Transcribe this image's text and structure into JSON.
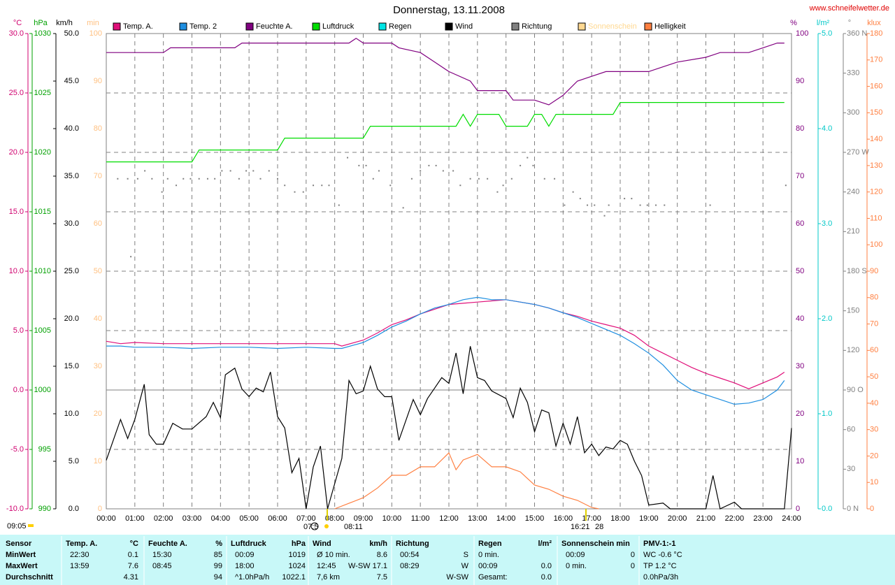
{
  "chart_data": {
    "type": "line",
    "title": "Donnerstag, 13.11.2008",
    "source": "www.schneifelwetter.de",
    "xlim": [
      0,
      24
    ],
    "xticks": [
      {
        "value": 0,
        "label": "00:00"
      },
      {
        "value": 1,
        "label": "01:00"
      },
      {
        "value": 2,
        "label": "02:00"
      },
      {
        "value": 3,
        "label": "03:00"
      },
      {
        "value": 4,
        "label": "04:00"
      },
      {
        "value": 5,
        "label": "05:00"
      },
      {
        "value": 6,
        "label": "06:00"
      },
      {
        "value": 7,
        "label": "07:00"
      },
      {
        "value": 8,
        "label": "08:00"
      },
      {
        "value": 9,
        "label": "09:00"
      },
      {
        "value": 10,
        "label": "10:00"
      },
      {
        "value": 11,
        "label": "11:00"
      },
      {
        "value": 12,
        "label": "12:00"
      },
      {
        "value": 13,
        "label": "13:00"
      },
      {
        "value": 14,
        "label": "14:00"
      },
      {
        "value": 15,
        "label": "15:00"
      },
      {
        "value": 16,
        "label": "16:00"
      },
      {
        "value": 17,
        "label": "17:00"
      },
      {
        "value": 18,
        "label": "18:00"
      },
      {
        "value": 19,
        "label": "19:00"
      },
      {
        "value": 20,
        "label": "20:00"
      },
      {
        "value": 21,
        "label": "21:00"
      },
      {
        "value": 22,
        "label": "22:00"
      },
      {
        "value": 23,
        "label": "23:00"
      },
      {
        "value": 24,
        "label": "24:00"
      }
    ],
    "grid": true,
    "y_axes": [
      {
        "unit": "°C",
        "color": "#d0006f",
        "lim": [
          -10,
          30
        ],
        "ticks": [
          {
            "value": 30,
            "label": "30.0"
          },
          {
            "value": 25,
            "label": "25.0"
          },
          {
            "value": 20,
            "label": "20.0"
          },
          {
            "value": 15,
            "label": "15.0"
          },
          {
            "value": 10,
            "label": "10.0"
          },
          {
            "value": 5,
            "label": "5.0"
          },
          {
            "value": 0,
            "label": "0.0"
          },
          {
            "value": -5,
            "label": "-5.0"
          },
          {
            "value": -10,
            "label": "-10.0"
          }
        ]
      },
      {
        "unit": "hPa",
        "color": "#00a000",
        "lim": [
          990,
          1030
        ],
        "ticks": [
          1030,
          1025,
          1020,
          1015,
          1010,
          1005,
          1000,
          995,
          990
        ]
      },
      {
        "unit": "km/h",
        "color": "#000000",
        "lim": [
          0,
          50
        ],
        "ticks": [
          {
            "value": 50,
            "label": "50.0"
          },
          {
            "value": 45,
            "label": "45.0"
          },
          {
            "value": 40,
            "label": "40.0"
          },
          {
            "value": 35,
            "label": "35.0"
          },
          {
            "value": 30,
            "label": "30.0"
          },
          {
            "value": 25,
            "label": "25.0"
          },
          {
            "value": 20,
            "label": "20.0"
          },
          {
            "value": 15,
            "label": "15.0"
          },
          {
            "value": 10,
            "label": "10.0"
          },
          {
            "value": 5,
            "label": "5.0"
          },
          {
            "value": 0,
            "label": "0.0"
          }
        ]
      },
      {
        "unit": "min",
        "color": "#ffc080",
        "lim": [
          0,
          100
        ],
        "ticks": [
          100,
          90,
          80,
          70,
          60,
          50,
          40,
          30,
          20,
          10,
          0
        ]
      },
      {
        "unit": "%",
        "color": "#800080",
        "lim": [
          0,
          100
        ],
        "ticks": [
          100,
          90,
          80,
          70,
          60,
          50,
          40,
          30,
          20,
          10,
          0
        ]
      },
      {
        "unit": "l/m²",
        "color": "#00c8c8",
        "lim": [
          0,
          5
        ],
        "ticks": [
          {
            "value": 5,
            "label": "5.0"
          },
          {
            "value": 4,
            "label": "4.0"
          },
          {
            "value": 3,
            "label": "3.0"
          },
          {
            "value": 2,
            "label": "2.0"
          },
          {
            "value": 1,
            "label": "1.0"
          },
          {
            "value": 0,
            "label": "0.0"
          }
        ]
      },
      {
        "unit": "°",
        "color": "#808080",
        "lim": [
          0,
          360
        ],
        "ticks": [
          {
            "value": 360,
            "label": "360 N"
          },
          330,
          300,
          {
            "value": 270,
            "label": "270 W"
          },
          240,
          210,
          {
            "value": 180,
            "label": "180 S"
          },
          150,
          120,
          {
            "value": 90,
            "label": "90 O"
          },
          60,
          30,
          {
            "value": 0,
            "label": "0 N"
          }
        ]
      },
      {
        "unit": "klux",
        "color": "#ff7f40",
        "lim": [
          0,
          180
        ],
        "ticks": [
          180,
          170,
          160,
          150,
          140,
          130,
          120,
          110,
          100,
          90,
          80,
          70,
          60,
          50,
          40,
          30,
          20,
          10,
          0
        ]
      }
    ],
    "series": [
      {
        "name": "Temp. A.",
        "color": "#e0107a",
        "axis": 0,
        "x": [
          0,
          0.5,
          1,
          2,
          3,
          4,
          5,
          6,
          7,
          8,
          8.25,
          9,
          9.5,
          10,
          10.5,
          11,
          11.5,
          12,
          12.5,
          13,
          13.5,
          14,
          14.5,
          15,
          15.5,
          16,
          16.5,
          17,
          17.5,
          18,
          18.5,
          19,
          19.5,
          20,
          20.5,
          21,
          21.5,
          22,
          22.5,
          23,
          23.5,
          23.75
        ],
        "values": [
          4.1,
          3.9,
          4.0,
          3.9,
          3.9,
          3.9,
          3.9,
          3.9,
          3.9,
          3.9,
          3.7,
          4.2,
          4.8,
          5.5,
          5.9,
          6.4,
          6.8,
          7.2,
          7.3,
          7.4,
          7.5,
          7.6,
          7.4,
          7.2,
          6.9,
          6.5,
          6.2,
          5.8,
          5.5,
          5.2,
          4.6,
          3.7,
          3.1,
          2.5,
          1.9,
          1.4,
          1.0,
          0.6,
          0.1,
          0.6,
          1.1,
          1.5
        ]
      },
      {
        "name": "Temp. 2",
        "color": "#1e8ee0",
        "axis": 0,
        "x": [
          0,
          0.5,
          1,
          2,
          3,
          4,
          5,
          6,
          7,
          8,
          8.25,
          9,
          9.5,
          10,
          10.5,
          11,
          11.5,
          12,
          12.5,
          13,
          13.5,
          14,
          14.5,
          15,
          15.5,
          16,
          16.5,
          17,
          17.5,
          18,
          18.5,
          19,
          19.5,
          20,
          20.5,
          21,
          21.5,
          22,
          22.5,
          23,
          23.5,
          23.75
        ],
        "values": [
          3.7,
          3.7,
          3.6,
          3.6,
          3.5,
          3.6,
          3.6,
          3.5,
          3.6,
          3.5,
          3.5,
          4.0,
          4.6,
          5.3,
          5.8,
          6.4,
          6.9,
          7.2,
          7.6,
          7.8,
          7.6,
          7.6,
          7.4,
          7.2,
          6.9,
          6.5,
          6.1,
          5.6,
          5.1,
          4.6,
          3.9,
          3.1,
          2.1,
          0.8,
          0.0,
          -0.4,
          -0.8,
          -1.2,
          -1.1,
          -0.8,
          0.0,
          0.8
        ]
      },
      {
        "name": "Feuchte A.",
        "color": "#800080",
        "axis": 4,
        "x": [
          0,
          2,
          2.25,
          4.5,
          4.75,
          8.5,
          8.75,
          9,
          10,
          10.25,
          11,
          11.5,
          12,
          12.75,
          13,
          14,
          14.25,
          15,
          15.5,
          16,
          16.5,
          17,
          17.5,
          19,
          19.5,
          20,
          21,
          21.5,
          22.5,
          23,
          23.5,
          23.75
        ],
        "values": [
          96,
          96,
          97,
          97,
          98,
          98,
          99,
          98,
          98,
          97,
          96,
          94,
          92,
          90,
          88,
          88,
          86,
          86,
          85,
          87,
          90,
          91,
          92,
          92,
          93,
          94,
          95,
          96,
          96,
          97,
          98,
          98
        ]
      },
      {
        "name": "Luftdruck",
        "color": "#00dd00",
        "axis": 1,
        "x": [
          0,
          3,
          3.25,
          6,
          6.25,
          9,
          9.25,
          12.25,
          12.5,
          12.75,
          13,
          13.75,
          14,
          14.75,
          15,
          15.25,
          15.5,
          15.75,
          17.75,
          18,
          23.75
        ],
        "values": [
          1019.2,
          1019.2,
          1020.2,
          1020.2,
          1021.2,
          1021.2,
          1022.2,
          1022.2,
          1023.2,
          1022.2,
          1023.2,
          1023.2,
          1022.2,
          1022.2,
          1023.2,
          1023.2,
          1022.2,
          1023.2,
          1023.2,
          1024.2,
          1024.2
        ]
      },
      {
        "name": "Regen",
        "color": "#00e5e5",
        "axis": 5
      },
      {
        "name": "Wind",
        "color": "#000000",
        "axis": 2,
        "x": [
          0,
          0.5,
          0.75,
          1,
          1.33,
          1.5,
          1.75,
          2,
          2.33,
          2.67,
          3,
          3.5,
          3.75,
          4,
          4.17,
          4.5,
          4.75,
          5,
          5.25,
          5.5,
          5.75,
          6,
          6.25,
          6.5,
          6.75,
          7,
          7.25,
          7.5,
          7.75,
          8.25,
          8.5,
          8.75,
          9,
          9.25,
          9.5,
          9.75,
          10,
          10.25,
          10.75,
          11,
          11.25,
          11.5,
          11.75,
          12,
          12.25,
          12.5,
          12.75,
          13,
          13.25,
          13.5,
          14,
          14.25,
          14.5,
          14.75,
          15,
          15.25,
          15.5,
          15.75,
          16,
          16.25,
          16.5,
          16.75,
          17,
          17.25,
          17.5,
          17.75,
          18,
          18.25,
          18.5,
          18.75,
          19,
          19.5,
          19.75,
          21,
          21.25,
          21.5,
          22,
          22.25,
          23.75,
          24
        ],
        "values": [
          5.1,
          9.4,
          7.4,
          9.4,
          13.1,
          7.8,
          6.8,
          6.8,
          9.0,
          8.4,
          8.4,
          9.7,
          11.2,
          9.6,
          14.1,
          14.8,
          12.6,
          11.8,
          12.7,
          12.3,
          14.4,
          9.7,
          8.5,
          3.8,
          5.3,
          0,
          4.4,
          6.6,
          0,
          5.3,
          13.5,
          12.1,
          12.4,
          15.0,
          12.6,
          11.8,
          11.8,
          7.2,
          11.5,
          9.9,
          11.6,
          12.7,
          13.8,
          13.2,
          16.4,
          12.1,
          17.1,
          13.8,
          13.5,
          12.4,
          11.6,
          9.6,
          12.7,
          11.2,
          8.1,
          10.4,
          10.1,
          6.6,
          9.0,
          6.8,
          9.7,
          5.9,
          6.8,
          5.6,
          6.5,
          6.3,
          7.2,
          6.8,
          5.0,
          3.5,
          0.4,
          0.6,
          0,
          0,
          3.5,
          0,
          0.7,
          0,
          0,
          8.5
        ]
      },
      {
        "name": "Richtung",
        "color": "#808080",
        "axis": 6,
        "markers": true,
        "x": [
          0.4,
          0.75,
          0.86,
          1.1,
          1.35,
          1.6,
          1.95,
          2.15,
          2.45,
          2.7,
          2.95,
          3.25,
          3.55,
          3.8,
          4.05,
          4.35,
          4.65,
          4.9,
          5.15,
          5.4,
          5.7,
          6.0,
          6.25,
          6.6,
          6.9,
          7.25,
          7.55,
          7.8,
          8.15,
          8.45,
          8.85,
          9.1,
          9.35,
          9.55,
          9.95,
          10.4,
          10.7,
          11.0,
          11.3,
          11.55,
          11.8,
          12.15,
          12.4,
          12.75,
          13.05,
          13.35,
          13.7,
          13.9,
          14.2,
          14.5,
          14.75,
          14.95,
          15.35,
          15.7,
          16.05,
          16.35,
          16.6,
          16.85,
          17.1,
          17.45,
          17.6,
          18.15,
          18.4,
          18.7,
          18.95,
          19.25,
          19.55,
          21.15,
          23.8
        ],
        "values": [
          250,
          250,
          191,
          250,
          256,
          250,
          240,
          250,
          245,
          250,
          250,
          250,
          250,
          250,
          256,
          256,
          250,
          256,
          256,
          250,
          256,
          250,
          245,
          240,
          240,
          245,
          245,
          245,
          230,
          266,
          260,
          260,
          250,
          256,
          245,
          228,
          250,
          256,
          260,
          260,
          256,
          256,
          245,
          250,
          250,
          250,
          240,
          245,
          250,
          260,
          266,
          260,
          250,
          250,
          230,
          240,
          235,
          230,
          230,
          222,
          230,
          235,
          235,
          230,
          230,
          230,
          230,
          230,
          245
        ]
      },
      {
        "name": "Sonnenschein",
        "color": "#ffd890",
        "axis": 3
      },
      {
        "name": "Helligkeit",
        "color": "#ff7f40",
        "axis": 7,
        "x": [
          8,
          8.5,
          9,
          9.5,
          10,
          10.5,
          11,
          11.5,
          12,
          12.25,
          12.5,
          13,
          13.5,
          14,
          14.5,
          15,
          15.5,
          16,
          16.5,
          17,
          17.25
        ],
        "values": [
          0,
          2.1,
          4.2,
          7.9,
          12.7,
          12.7,
          15.9,
          15.9,
          21.2,
          14.8,
          18.5,
          20.6,
          15.9,
          15.9,
          14.0,
          9.0,
          7.4,
          4.8,
          3.2,
          0.5,
          0
        ]
      }
    ],
    "annotations": [
      "07:5",
      "08:11",
      "16:21",
      "28",
      "09:05"
    ]
  },
  "table": {
    "header": "Sensor",
    "row_labels": [
      "MinWert",
      "MaxWert",
      "Durchschnitt"
    ],
    "sections": [
      {
        "header": "Temp. A.",
        "unit": "°C",
        "rows": [
          {
            "time": "22:30",
            "value": "0.1"
          },
          {
            "time": "13:59",
            "value": "7.6"
          },
          {
            "value": "4.31"
          }
        ]
      },
      {
        "header": "Feuchte A.",
        "unit": "%",
        "rows": [
          {
            "time": "15:30",
            "value": "85"
          },
          {
            "time": "08:45",
            "value": "99"
          },
          {
            "value": "94"
          }
        ]
      },
      {
        "header": "Luftdruck",
        "unit": "hPa",
        "rows": [
          {
            "time": "00:09",
            "value": "1019"
          },
          {
            "time": "18:00",
            "value": "1024"
          },
          {
            "time": "^1.0hPa/h",
            "value": "1022.1"
          }
        ]
      },
      {
        "header": "Wind",
        "unit": "km/h",
        "rows": [
          {
            "time": "Ø 10 min.",
            "value": "8.6"
          },
          {
            "time": "12:45",
            "value": "W-SW 17.1"
          },
          {
            "time": "7,6 km",
            "value": "7.5"
          }
        ]
      },
      {
        "header": "Richtung",
        "rows": [
          {
            "time": "00:54",
            "value": "S"
          },
          {
            "time": "08:29",
            "value": "W"
          },
          {
            "value": "W-SW"
          }
        ]
      },
      {
        "header": "Regen",
        "unit": "l/m²",
        "rows": [
          {
            "time": "0 min."
          },
          {
            "time": "00:09",
            "value": "0.0"
          },
          {
            "time": "Gesamt:",
            "value": "0.0"
          }
        ]
      },
      {
        "header": "Sonnenschein min",
        "rows": [
          {
            "time": "00:09",
            "value": "0"
          },
          {
            "time": "0 min.",
            "value": "0"
          }
        ]
      },
      {
        "header": "PMV-1:-1",
        "rows": [
          {
            "time": "WC -0.6 °C"
          },
          {
            "time": "TP 1.2 °C"
          },
          {
            "time": "0.0hPa/3h"
          }
        ]
      }
    ]
  }
}
